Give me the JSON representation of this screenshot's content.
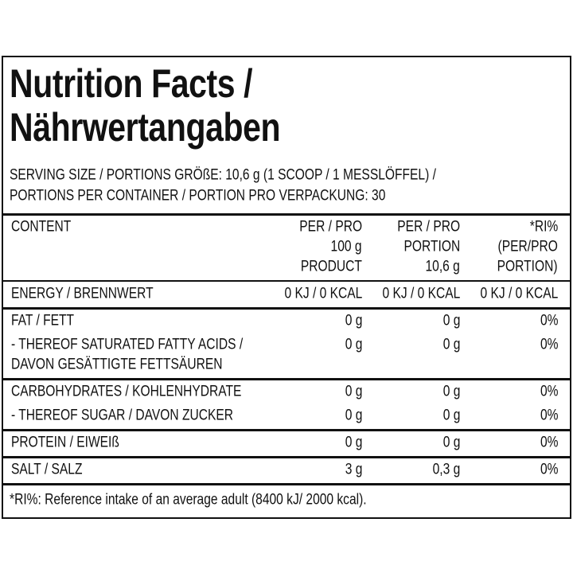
{
  "title": [
    "Nutrition Facts /",
    "Nährwertangaben"
  ],
  "serving": [
    "SERVING SIZE / PORTIONS GRÖßE: 10,6 g (1 SCOOP / 1 MESSLÖFFEL) /",
    "PORTIONS PER CONTAINER / PORTION PRO VERPACKUNG: 30"
  ],
  "table": {
    "header": {
      "label": [
        "CONTENT"
      ],
      "values": [
        [
          "PER / PRO",
          "100 g",
          "PRODUCT"
        ],
        [
          "PER / PRO",
          "PORTION",
          "10,6 g"
        ],
        [
          "*RI%",
          "(PER/PRO",
          "PORTION)"
        ]
      ]
    },
    "groups": [
      {
        "rows": [
          {
            "label": [
              "ENERGY / BRENNWERT"
            ],
            "values": [
              "0 KJ / 0 KCAL",
              "0 KJ / 0 KCAL",
              "0 KJ / 0 KCAL"
            ]
          }
        ]
      },
      {
        "rows": [
          {
            "label": [
              "FAT / FETT"
            ],
            "values": [
              "0 g",
              "0 g",
              "0%"
            ]
          },
          {
            "label": [
              "- THEREOF SATURATED FATTY ACIDS /",
              "DAVON GESÄTTIGTE FETTSÄUREN"
            ],
            "values": [
              "0 g",
              "0 g",
              "0%"
            ]
          }
        ]
      },
      {
        "rows": [
          {
            "label": [
              "CARBOHYDRATES / KOHLENHYDRATE"
            ],
            "values": [
              "0 g",
              "0 g",
              "0%"
            ]
          },
          {
            "label": [
              "- THEREOF SUGAR / DAVON ZUCKER"
            ],
            "values": [
              "0 g",
              "0 g",
              "0%"
            ]
          }
        ]
      },
      {
        "rows": [
          {
            "label": [
              "PROTEIN / EIWEIß"
            ],
            "values": [
              "0 g",
              "0 g",
              "0%"
            ]
          }
        ]
      },
      {
        "rows": [
          {
            "label": [
              "SALT / SALZ"
            ],
            "values": [
              "3 g",
              "0,3 g",
              "0%"
            ]
          }
        ]
      }
    ]
  },
  "footnote": "*RI%: Reference intake of an average adult (8400 kJ/ 2000 kcal)."
}
